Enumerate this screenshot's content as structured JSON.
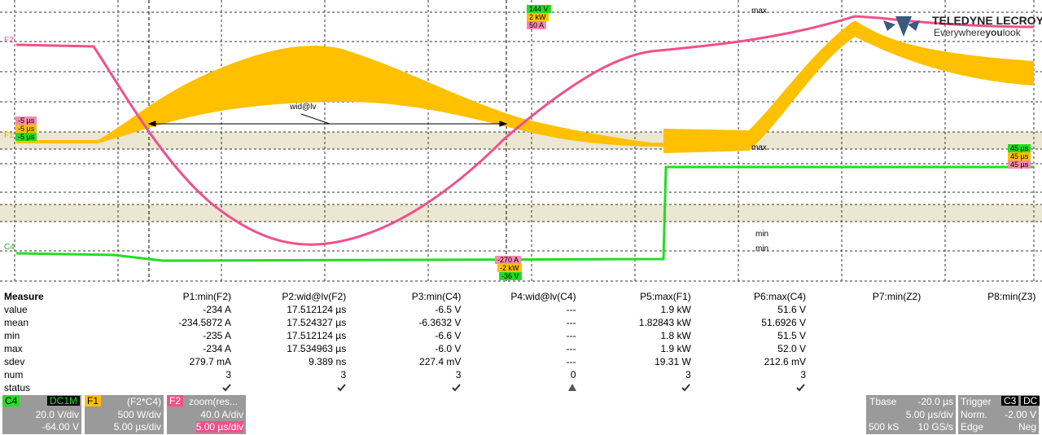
{
  "logo": {
    "brand": "TELEDYNE LECROY",
    "tagline": [
      "Everywhere",
      "you",
      "look"
    ]
  },
  "graticule": {
    "trace_labels": [
      "F2",
      "F1",
      "C4"
    ],
    "top_cursor_labels": [
      "144 V",
      "2 kW",
      "50 A"
    ],
    "bottom_cursor_labels": [
      "-270 A",
      "-2 kW",
      "-36 V"
    ],
    "left_cursor_labels": [
      "-5 µs",
      "-5 µs",
      "-5 µs"
    ],
    "right_cursor_labels": [
      "45 µs",
      "45 µs",
      "45 µs"
    ],
    "annotations": [
      "max",
      "wid@lv",
      "max",
      "min",
      "min"
    ]
  },
  "measure": {
    "title": "Measure",
    "columns": [
      "P1:min(F2)",
      "P2:wid@lv(F2)",
      "P3:min(C4)",
      "P4:wid@lv(C4)",
      "P5:max(F1)",
      "P6:max(C4)",
      "P7:min(Z2)",
      "P8:min(Z3)"
    ],
    "rows": [
      {
        "label": "value",
        "cells": [
          "-234 A",
          "17.512124 µs",
          "-6.5 V",
          "---",
          "1.9 kW",
          "51.6 V"
        ]
      },
      {
        "label": "mean",
        "cells": [
          "-234.5872 A",
          "17.524327 µs",
          "-6.3632 V",
          "---",
          "1.82843 kW",
          "51.6926 V"
        ]
      },
      {
        "label": "min",
        "cells": [
          "-235 A",
          "17.512124 µs",
          "-6.6 V",
          "---",
          "1.8 kW",
          "51.5 V"
        ]
      },
      {
        "label": "max",
        "cells": [
          "-234 A",
          "17.534963 µs",
          "-6.0 V",
          "---",
          "1.9 kW",
          "52.0 V"
        ]
      },
      {
        "label": "sdev",
        "cells": [
          "279.7 mA",
          "9.389 ns",
          "227.4 mV",
          "---",
          "19.31 W",
          "212.6 mV"
        ]
      },
      {
        "label": "num",
        "cells": [
          "3",
          "3",
          "3",
          "0",
          "3",
          "3"
        ]
      }
    ],
    "status_label": "status"
  },
  "channels": [
    {
      "id": "C4",
      "tag": "DC1M",
      "scale": "20.0 V/div",
      "offset": "-64.00 V"
    },
    {
      "id": "F1",
      "tag": "(F2*C4)",
      "scale": "500 W/div",
      "offset": "5.00 µs/div"
    },
    {
      "id": "F2",
      "tag": "zoom(res...",
      "scale": "40.0 A/div",
      "offset": "5.00 µs/div"
    }
  ],
  "timebase": {
    "label": "Tbase",
    "delay": "-20.0 µs",
    "scale": "5.00 µs/div",
    "samples": "500 kS",
    "rate": "10 GS/s"
  },
  "trigger": {
    "label": "Trigger",
    "source": "C3",
    "coupling": "DC",
    "mode": "Norm.",
    "level": "-2.00 V",
    "type": "Edge",
    "slope": "Neg"
  }
}
